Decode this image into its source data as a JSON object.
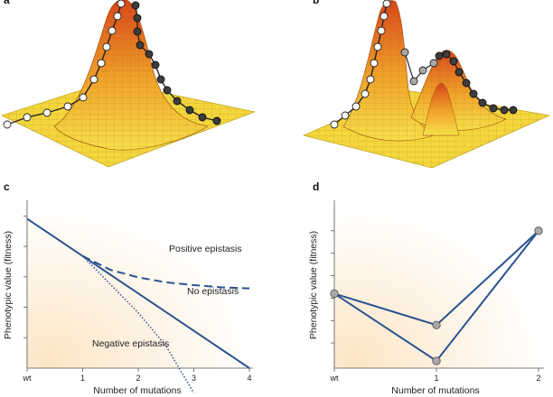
{
  "panels": {
    "a": "a",
    "b": "b",
    "c": "c",
    "d": "d"
  },
  "colors": {
    "line": "#2a5391",
    "surface_low": "#f6e04a",
    "surface_mid": "#f1a52a",
    "surface_high": "#d8461a",
    "mesh": "#8a5a10",
    "node_white": "#ffffff",
    "node_dark": "#3d3d3d",
    "node_gray": "#a9a9a9",
    "bg_warm": "#fde9cc"
  },
  "icons": {
    "landscape_single_peak": "single-peak-fitness-landscape-icon",
    "landscape_rugged": "rugged-fitness-landscape-icon"
  },
  "chart_data": [
    {
      "panel": "c",
      "type": "line",
      "xlabel": "Number of mutations",
      "ylabel": "Phenotypic value (fitness)",
      "x_tick_labels": [
        "wt",
        "1",
        "2",
        "3",
        "4"
      ],
      "xlim": [
        0,
        4
      ],
      "ylim": [
        0,
        6
      ],
      "grid": false,
      "series": [
        {
          "name": "No epistasis",
          "style": "solid",
          "x": [
            0,
            1,
            4
          ],
          "y": [
            5.4,
            4.05,
            0.0
          ]
        },
        {
          "name": "Positive epistasis",
          "style": "dashed",
          "x": [
            1,
            1.5,
            2,
            2.5,
            3,
            3.5,
            4
          ],
          "y": [
            4.05,
            3.55,
            3.28,
            3.1,
            3.0,
            2.92,
            2.88
          ]
        },
        {
          "name": "Negative epistasis",
          "style": "dotted",
          "x": [
            1,
            2,
            2.5,
            3
          ],
          "y": [
            4.05,
            2.0,
            0.8,
            -0.9
          ]
        }
      ],
      "annotations": [
        "Positive epistasis",
        "No epistasis",
        "Negative epistasis"
      ]
    },
    {
      "panel": "d",
      "type": "line",
      "xlabel": "Number of mutations",
      "ylabel": "Phenotypic value (fitness)",
      "x_tick_labels": [
        "wt",
        "1",
        "2"
      ],
      "xlim": [
        0,
        2
      ],
      "ylim": [
        0,
        7
      ],
      "grid": false,
      "series": [
        {
          "name": "",
          "x": [
            0,
            1,
            2
          ],
          "y": [
            3.0,
            1.6,
            5.8
          ]
        },
        {
          "name": "",
          "x": [
            0,
            1,
            2
          ],
          "y": [
            3.0,
            0.0,
            5.8
          ]
        }
      ],
      "points": [
        {
          "x": 0,
          "y": 3.0
        },
        {
          "x": 1,
          "y": 1.6
        },
        {
          "x": 1,
          "y": 0.0
        },
        {
          "x": 2,
          "y": 5.8
        }
      ]
    }
  ]
}
